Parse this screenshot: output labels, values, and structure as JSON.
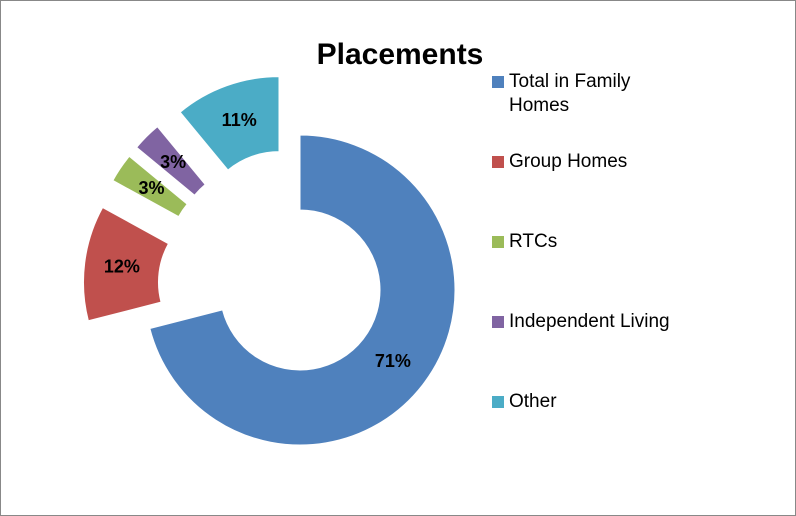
{
  "chart_data": {
    "type": "donut",
    "title": "Placements",
    "categories": [
      "Total in Family Homes",
      "Group Homes",
      "RTCs",
      "Independent Living",
      "Other"
    ],
    "values": [
      71,
      12,
      3,
      3,
      11
    ],
    "value_labels": [
      "71%",
      "12%",
      "3%",
      "3%",
      "11%"
    ],
    "colors": [
      "#4f81bd",
      "#c0504d",
      "#9bbb59",
      "#8064a2",
      "#4bacc6"
    ],
    "legend": "right"
  }
}
